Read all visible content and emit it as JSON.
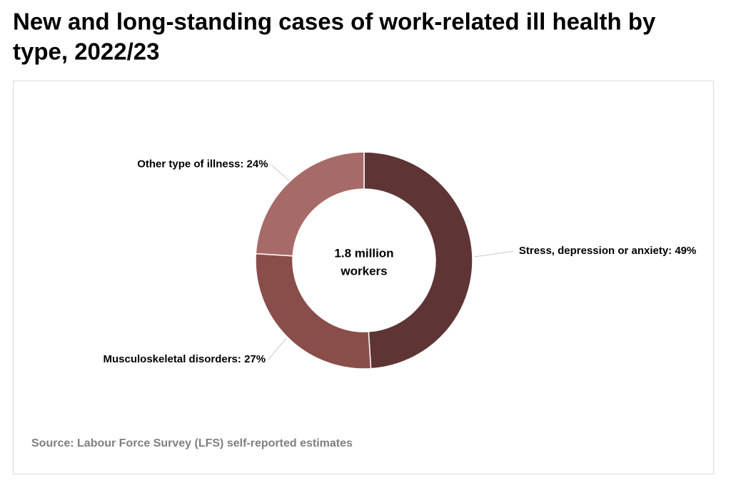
{
  "chart_data": {
    "type": "pie",
    "title": [
      "New and long-standing cases of work-related ill health by",
      "type, 2022/23"
    ],
    "center_label": [
      "1.8 million",
      "workers"
    ],
    "values": [
      49,
      27,
      24
    ],
    "value_labels": [
      "Stress, depression or anxiety: 49%",
      "Musculoskeletal disorders: 27%",
      "Other type of illness: 24%"
    ],
    "colors": [
      "#5e3434",
      "#8a4e4a",
      "#a66b68"
    ],
    "source": "Source: Labour Force Survey (LFS) self-reported estimates"
  }
}
